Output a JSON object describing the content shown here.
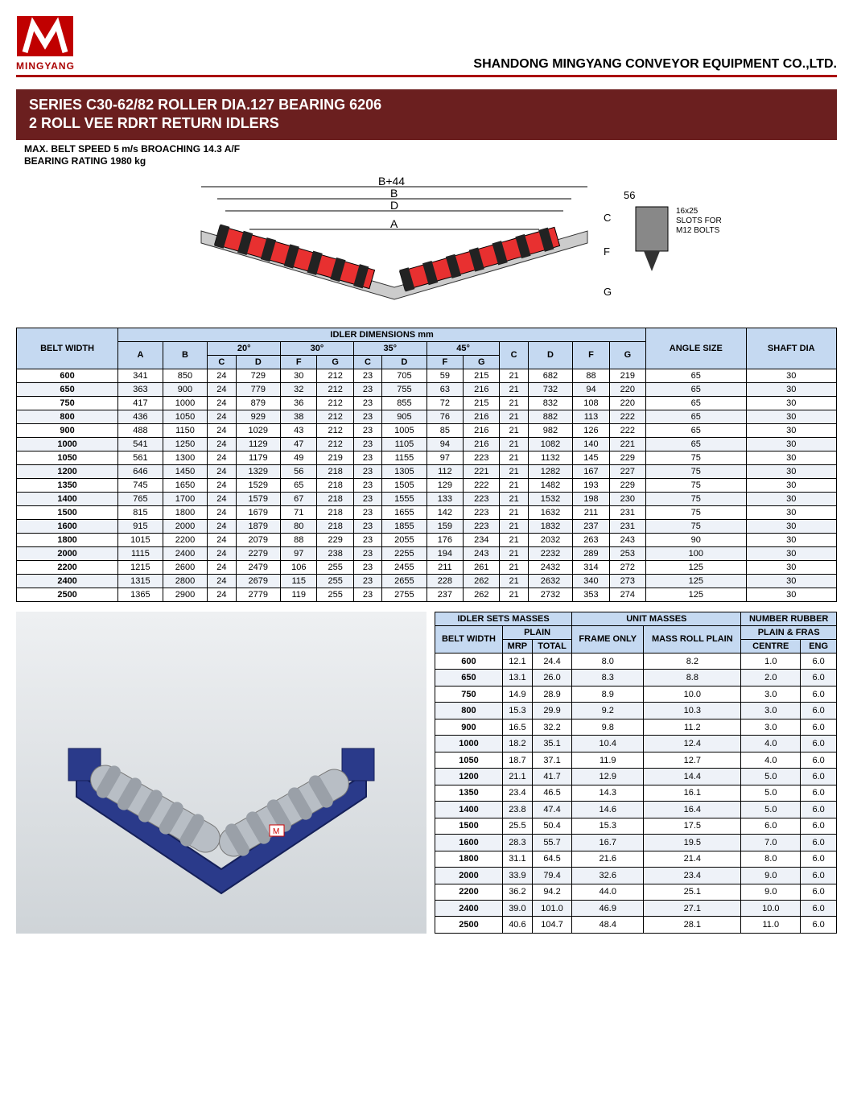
{
  "header": {
    "logo_text": "MINGYANG",
    "company": "SHANDONG MINGYANG CONVEYOR EQUIPMENT CO.,LTD."
  },
  "title": {
    "line1": "SERIES C30-62/82 ROLLER DIA.127 BEARING 6206",
    "line2": "2 ROLL VEE RDRT RETURN IDLERS"
  },
  "specs": {
    "line1": "MAX. BELT SPEED 5 m/s BROACHING 14.3 A/F",
    "line2": "BEARING RATING 1980 kg"
  },
  "diagram_labels": {
    "b44": "B+44",
    "b": "B",
    "d": "D",
    "a": "A",
    "c": "C",
    "f": "F",
    "g": "G",
    "dim56": "56",
    "slot1": "16x25",
    "slot2": "SLOTS FOR",
    "slot3": "M12 BOLTS"
  },
  "table1": {
    "title": "IDLER DIMENSIONS mm",
    "belt_label": "BELT WIDTH",
    "angle_label": "ANGLE SIZE",
    "shaft_label": "SHAFT DIA",
    "angles": [
      "20°",
      "30°",
      "35°",
      "45°"
    ],
    "subcols": [
      "A",
      "B",
      "C",
      "D",
      "F",
      "G",
      "C",
      "D",
      "F",
      "G",
      "C",
      "D",
      "F",
      "G"
    ],
    "rows": [
      [
        "600",
        "341",
        "850",
        "24",
        "729",
        "30",
        "212",
        "23",
        "705",
        "59",
        "215",
        "21",
        "682",
        "88",
        "219",
        "65",
        "30"
      ],
      [
        "650",
        "363",
        "900",
        "24",
        "779",
        "32",
        "212",
        "23",
        "755",
        "63",
        "216",
        "21",
        "732",
        "94",
        "220",
        "65",
        "30"
      ],
      [
        "750",
        "417",
        "1000",
        "24",
        "879",
        "36",
        "212",
        "23",
        "855",
        "72",
        "215",
        "21",
        "832",
        "108",
        "220",
        "65",
        "30"
      ],
      [
        "800",
        "436",
        "1050",
        "24",
        "929",
        "38",
        "212",
        "23",
        "905",
        "76",
        "216",
        "21",
        "882",
        "113",
        "222",
        "65",
        "30"
      ],
      [
        "900",
        "488",
        "1150",
        "24",
        "1029",
        "43",
        "212",
        "23",
        "1005",
        "85",
        "216",
        "21",
        "982",
        "126",
        "222",
        "65",
        "30"
      ],
      [
        "1000",
        "541",
        "1250",
        "24",
        "1129",
        "47",
        "212",
        "23",
        "1105",
        "94",
        "216",
        "21",
        "1082",
        "140",
        "221",
        "65",
        "30"
      ],
      [
        "1050",
        "561",
        "1300",
        "24",
        "1179",
        "49",
        "219",
        "23",
        "1155",
        "97",
        "223",
        "21",
        "1132",
        "145",
        "229",
        "75",
        "30"
      ],
      [
        "1200",
        "646",
        "1450",
        "24",
        "1329",
        "56",
        "218",
        "23",
        "1305",
        "112",
        "221",
        "21",
        "1282",
        "167",
        "227",
        "75",
        "30"
      ],
      [
        "1350",
        "745",
        "1650",
        "24",
        "1529",
        "65",
        "218",
        "23",
        "1505",
        "129",
        "222",
        "21",
        "1482",
        "193",
        "229",
        "75",
        "30"
      ],
      [
        "1400",
        "765",
        "1700",
        "24",
        "1579",
        "67",
        "218",
        "23",
        "1555",
        "133",
        "223",
        "21",
        "1532",
        "198",
        "230",
        "75",
        "30"
      ],
      [
        "1500",
        "815",
        "1800",
        "24",
        "1679",
        "71",
        "218",
        "23",
        "1655",
        "142",
        "223",
        "21",
        "1632",
        "211",
        "231",
        "75",
        "30"
      ],
      [
        "1600",
        "915",
        "2000",
        "24",
        "1879",
        "80",
        "218",
        "23",
        "1855",
        "159",
        "223",
        "21",
        "1832",
        "237",
        "231",
        "75",
        "30"
      ],
      [
        "1800",
        "1015",
        "2200",
        "24",
        "2079",
        "88",
        "229",
        "23",
        "2055",
        "176",
        "234",
        "21",
        "2032",
        "263",
        "243",
        "90",
        "30"
      ],
      [
        "2000",
        "1115",
        "2400",
        "24",
        "2279",
        "97",
        "238",
        "23",
        "2255",
        "194",
        "243",
        "21",
        "2232",
        "289",
        "253",
        "100",
        "30"
      ],
      [
        "2200",
        "1215",
        "2600",
        "24",
        "2479",
        "106",
        "255",
        "23",
        "2455",
        "211",
        "261",
        "21",
        "2432",
        "314",
        "272",
        "125",
        "30"
      ],
      [
        "2400",
        "1315",
        "2800",
        "24",
        "2679",
        "115",
        "255",
        "23",
        "2655",
        "228",
        "262",
        "21",
        "2632",
        "340",
        "273",
        "125",
        "30"
      ],
      [
        "2500",
        "1365",
        "2900",
        "24",
        "2779",
        "119",
        "255",
        "23",
        "2755",
        "237",
        "262",
        "21",
        "2732",
        "353",
        "274",
        "125",
        "30"
      ]
    ]
  },
  "table2": {
    "h1": "IDLER SETS MASSES",
    "h2": "UNIT MASSES",
    "h3": "NUMBER RUBBER",
    "belt": "BELT WIDTH",
    "plain": "PLAIN",
    "frame": "FRAME ONLY",
    "massroll": "MASS ROLL PLAIN",
    "pfras": "PLAIN & FRAS",
    "mrp": "MRP",
    "total": "TOTAL",
    "centre": "CENTRE",
    "eng": "ENG",
    "rows": [
      [
        "600",
        "12.1",
        "24.4",
        "8.0",
        "8.2",
        "1.0",
        "6.0"
      ],
      [
        "650",
        "13.1",
        "26.0",
        "8.3",
        "8.8",
        "2.0",
        "6.0"
      ],
      [
        "750",
        "14.9",
        "28.9",
        "8.9",
        "10.0",
        "3.0",
        "6.0"
      ],
      [
        "800",
        "15.3",
        "29.9",
        "9.2",
        "10.3",
        "3.0",
        "6.0"
      ],
      [
        "900",
        "16.5",
        "32.2",
        "9.8",
        "11.2",
        "3.0",
        "6.0"
      ],
      [
        "1000",
        "18.2",
        "35.1",
        "10.4",
        "12.4",
        "4.0",
        "6.0"
      ],
      [
        "1050",
        "18.7",
        "37.1",
        "11.9",
        "12.7",
        "4.0",
        "6.0"
      ],
      [
        "1200",
        "21.1",
        "41.7",
        "12.9",
        "14.4",
        "5.0",
        "6.0"
      ],
      [
        "1350",
        "23.4",
        "46.5",
        "14.3",
        "16.1",
        "5.0",
        "6.0"
      ],
      [
        "1400",
        "23.8",
        "47.4",
        "14.6",
        "16.4",
        "5.0",
        "6.0"
      ],
      [
        "1500",
        "25.5",
        "50.4",
        "15.3",
        "17.5",
        "6.0",
        "6.0"
      ],
      [
        "1600",
        "28.3",
        "55.7",
        "16.7",
        "19.5",
        "7.0",
        "6.0"
      ],
      [
        "1800",
        "31.1",
        "64.5",
        "21.6",
        "21.4",
        "8.0",
        "6.0"
      ],
      [
        "2000",
        "33.9",
        "79.4",
        "32.6",
        "23.4",
        "9.0",
        "6.0"
      ],
      [
        "2200",
        "36.2",
        "94.2",
        "44.0",
        "25.1",
        "9.0",
        "6.0"
      ],
      [
        "2400",
        "39.0",
        "101.0",
        "46.9",
        "27.1",
        "10.0",
        "6.0"
      ],
      [
        "2500",
        "40.6",
        "104.7",
        "48.4",
        "28.1",
        "11.0",
        "6.0"
      ]
    ]
  },
  "colors": {
    "brand_red": "#c00000",
    "banner_bg": "#6b1f1f",
    "header_blue": "#c5d9f1",
    "roller_red": "#e83030",
    "frame_blue": "#2a3a8a",
    "metal": "#b8bec5"
  }
}
